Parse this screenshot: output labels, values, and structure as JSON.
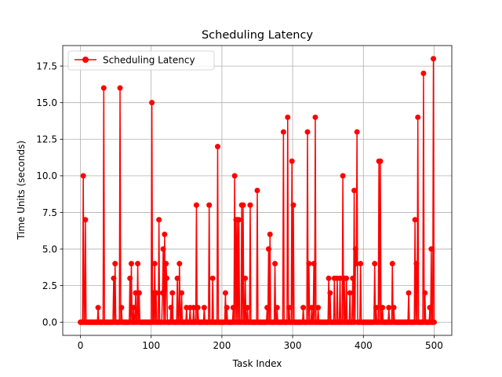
{
  "chart_data": {
    "type": "line",
    "title": "Scheduling Latency",
    "xlabel": "Task Index",
    "ylabel": "Time Units (seconds)",
    "xlim": [
      -25,
      525
    ],
    "ylim": [
      -0.9,
      18.9
    ],
    "xticks": [
      0,
      100,
      200,
      300,
      400,
      500
    ],
    "yticks": [
      0.0,
      2.5,
      5.0,
      7.5,
      10.0,
      12.5,
      15.0,
      17.5
    ],
    "xtick_labels": [
      "0",
      "100",
      "200",
      "300",
      "400",
      "500"
    ],
    "ytick_labels": [
      "0.0",
      "2.5",
      "5.0",
      "7.5",
      "10.0",
      "12.5",
      "15.0",
      "17.5"
    ],
    "grid": true,
    "legend_position": "top-left",
    "series": [
      {
        "name": "Scheduling Latency",
        "color": "#ff0000",
        "marker": "circle",
        "length": 501,
        "nonzero": [
          [
            4,
            10
          ],
          [
            7,
            7
          ],
          [
            25,
            1
          ],
          [
            33,
            16
          ],
          [
            47,
            3
          ],
          [
            49,
            4
          ],
          [
            56,
            16
          ],
          [
            58,
            1
          ],
          [
            70,
            3
          ],
          [
            72,
            4
          ],
          [
            75,
            1
          ],
          [
            78,
            2
          ],
          [
            81,
            4
          ],
          [
            83,
            2
          ],
          [
            101,
            15
          ],
          [
            103,
            2
          ],
          [
            105,
            4
          ],
          [
            107,
            2
          ],
          [
            111,
            7
          ],
          [
            116,
            2
          ],
          [
            117,
            5
          ],
          [
            119,
            6
          ],
          [
            121,
            4
          ],
          [
            122,
            3
          ],
          [
            128,
            1
          ],
          [
            130,
            2
          ],
          [
            137,
            3
          ],
          [
            140,
            4
          ],
          [
            143,
            2
          ],
          [
            150,
            1
          ],
          [
            155,
            1
          ],
          [
            160,
            1
          ],
          [
            164,
            8
          ],
          [
            166,
            1
          ],
          [
            175,
            1
          ],
          [
            182,
            8
          ],
          [
            187,
            3
          ],
          [
            194,
            12
          ],
          [
            205,
            2
          ],
          [
            207,
            1
          ],
          [
            216,
            1
          ],
          [
            218,
            10
          ],
          [
            220,
            7
          ],
          [
            222,
            7
          ],
          [
            224,
            7
          ],
          [
            228,
            8
          ],
          [
            230,
            8
          ],
          [
            233,
            3
          ],
          [
            236,
            1
          ],
          [
            240,
            8
          ],
          [
            250,
            9
          ],
          [
            264,
            1
          ],
          [
            266,
            5
          ],
          [
            268,
            6
          ],
          [
            275,
            4
          ],
          [
            278,
            1
          ],
          [
            287,
            13
          ],
          [
            293,
            14
          ],
          [
            295,
            1
          ],
          [
            299,
            11
          ],
          [
            301,
            8
          ],
          [
            315,
            1
          ],
          [
            321,
            13
          ],
          [
            323,
            4
          ],
          [
            327,
            1
          ],
          [
            330,
            4
          ],
          [
            332,
            14
          ],
          [
            336,
            1
          ],
          [
            351,
            3
          ],
          [
            353,
            2
          ],
          [
            359,
            3
          ],
          [
            363,
            3
          ],
          [
            367,
            3
          ],
          [
            371,
            10
          ],
          [
            373,
            3
          ],
          [
            376,
            3
          ],
          [
            381,
            2
          ],
          [
            385,
            3
          ],
          [
            387,
            9
          ],
          [
            389,
            5
          ],
          [
            390,
            4
          ],
          [
            391,
            13
          ],
          [
            396,
            4
          ],
          [
            416,
            4
          ],
          [
            418,
            1
          ],
          [
            422,
            11
          ],
          [
            424,
            11
          ],
          [
            427,
            1
          ],
          [
            436,
            1
          ],
          [
            441,
            4
          ],
          [
            443,
            1
          ],
          [
            464,
            2
          ],
          [
            473,
            7
          ],
          [
            475,
            4
          ],
          [
            477,
            14
          ],
          [
            485,
            17
          ],
          [
            487,
            2
          ],
          [
            494,
            1
          ],
          [
            496,
            5
          ],
          [
            499,
            18
          ]
        ]
      }
    ]
  }
}
